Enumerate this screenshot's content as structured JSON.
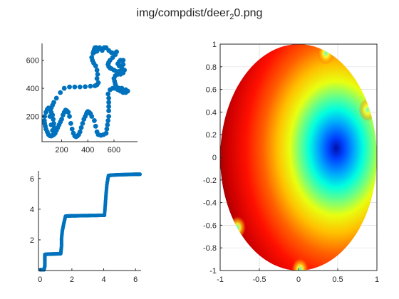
{
  "figure": {
    "title_pre": "img/compdist/deer",
    "title_sub": "2",
    "title_post": "0.png"
  },
  "chart_data": [
    {
      "type": "scatter",
      "panel": "shape",
      "xlim": [
        50,
        780
      ],
      "ylim": [
        20,
        720
      ],
      "xticks": [
        200,
        400,
        600
      ],
      "yticks": [
        200,
        400,
        600
      ],
      "marker_color": "#0072bd",
      "x": [
        120,
        130,
        140,
        160,
        190,
        220,
        260,
        300,
        340,
        380,
        420,
        455,
        470,
        480,
        470,
        475,
        470,
        460,
        445,
        435,
        430,
        440,
        460,
        470,
        465,
        455,
        450,
        445,
        455,
        470,
        480,
        490,
        500,
        510,
        525,
        540,
        560,
        580,
        600,
        620,
        610,
        590,
        570,
        560,
        555,
        560,
        570,
        580,
        600,
        620,
        640,
        660,
        670,
        670,
        650,
        640,
        630,
        640,
        660,
        680,
        670,
        650,
        630,
        610,
        600,
        605,
        610,
        620,
        640,
        660,
        690,
        705,
        690,
        670,
        650,
        630,
        610,
        590,
        570,
        555,
        560,
        560,
        560,
        560,
        560,
        555,
        550,
        545,
        540,
        520,
        500,
        480,
        470,
        460,
        450,
        430,
        420,
        410,
        400,
        395,
        390,
        380,
        370,
        360,
        350,
        340,
        330,
        320,
        310,
        300,
        290,
        280,
        270,
        260,
        250,
        240,
        230,
        220,
        210,
        200,
        190,
        180,
        170,
        160,
        150,
        140,
        130,
        120,
        110,
        100,
        90,
        80,
        75,
        70,
        68,
        70,
        80,
        90,
        100,
        110,
        120,
        130,
        135,
        140,
        145,
        150,
        140,
        130,
        120,
        110
      ],
      "y": [
        260,
        280,
        300,
        330,
        370,
        400,
        410,
        410,
        410,
        412,
        415,
        418,
        425,
        440,
        470,
        500,
        530,
        560,
        580,
        600,
        620,
        650,
        670,
        680,
        690,
        690,
        680,
        665,
        660,
        665,
        680,
        690,
        680,
        670,
        690,
        690,
        670,
        655,
        650,
        660,
        640,
        620,
        600,
        585,
        570,
        555,
        545,
        540,
        530,
        520,
        520,
        540,
        570,
        600,
        600,
        590,
        575,
        560,
        545,
        530,
        510,
        500,
        500,
        490,
        470,
        450,
        430,
        410,
        400,
        400,
        390,
        380,
        370,
        370,
        380,
        390,
        400,
        400,
        390,
        360,
        330,
        300,
        270,
        240,
        200,
        170,
        140,
        110,
        80,
        70,
        65,
        70,
        90,
        130,
        170,
        200,
        220,
        230,
        235,
        230,
        220,
        200,
        180,
        150,
        120,
        90,
        70,
        60,
        55,
        60,
        80,
        110,
        150,
        200,
        230,
        240,
        245,
        230,
        210,
        180,
        160,
        140,
        120,
        100,
        80,
        70,
        65,
        60,
        62,
        70,
        90,
        110,
        130,
        150,
        170,
        200,
        230,
        250,
        260,
        250,
        230,
        210,
        180,
        150,
        120,
        100,
        90,
        100,
        140,
        200
      ]
    },
    {
      "type": "scatter",
      "panel": "parameterization",
      "xlim": [
        -0.1,
        6.35
      ],
      "ylim": [
        0,
        6.5
      ],
      "xticks": [
        0,
        2,
        4,
        6
      ],
      "yticks": [
        2,
        4,
        6
      ],
      "marker_color": "#0072bd",
      "x": [
        0.0,
        0.1,
        0.2,
        0.25,
        0.3,
        0.3,
        0.3,
        0.5,
        0.8,
        1.1,
        1.3,
        1.35,
        1.35,
        1.4,
        1.5,
        1.6,
        1.8,
        2.0,
        2.3,
        2.6,
        2.9,
        3.2,
        3.5,
        3.8,
        4.05,
        4.1,
        4.15,
        4.2,
        4.3,
        4.5,
        4.8,
        5.1,
        5.4,
        5.7,
        6.0,
        6.28
      ],
      "y": [
        0.05,
        0.05,
        0.05,
        0.05,
        0.3,
        0.7,
        1.05,
        1.07,
        1.08,
        1.09,
        1.1,
        1.6,
        2.1,
        2.6,
        3.1,
        3.55,
        3.56,
        3.57,
        3.57,
        3.58,
        3.58,
        3.59,
        3.59,
        3.6,
        3.6,
        4.3,
        5.0,
        5.6,
        6.2,
        6.22,
        6.24,
        6.25,
        6.26,
        6.27,
        6.28,
        6.28
      ]
    },
    {
      "type": "heatmap",
      "panel": "disk-distance-field",
      "xlim": [
        -1,
        1
      ],
      "ylim": [
        -1,
        1
      ],
      "xticks": [
        -1,
        -0.5,
        0,
        0.5,
        1
      ],
      "yticks": [
        -1,
        -0.8,
        -0.6,
        -0.4,
        -0.2,
        0,
        0.2,
        0.4,
        0.6,
        0.8,
        1
      ],
      "grid": true,
      "colormap": "jet",
      "center": [
        0.52,
        0.09
      ],
      "singular_points": [
        [
          0.35,
          0.92
        ],
        [
          0.88,
          0.42
        ],
        [
          -0.78,
          -0.62
        ],
        [
          0.02,
          -0.99
        ]
      ]
    }
  ]
}
